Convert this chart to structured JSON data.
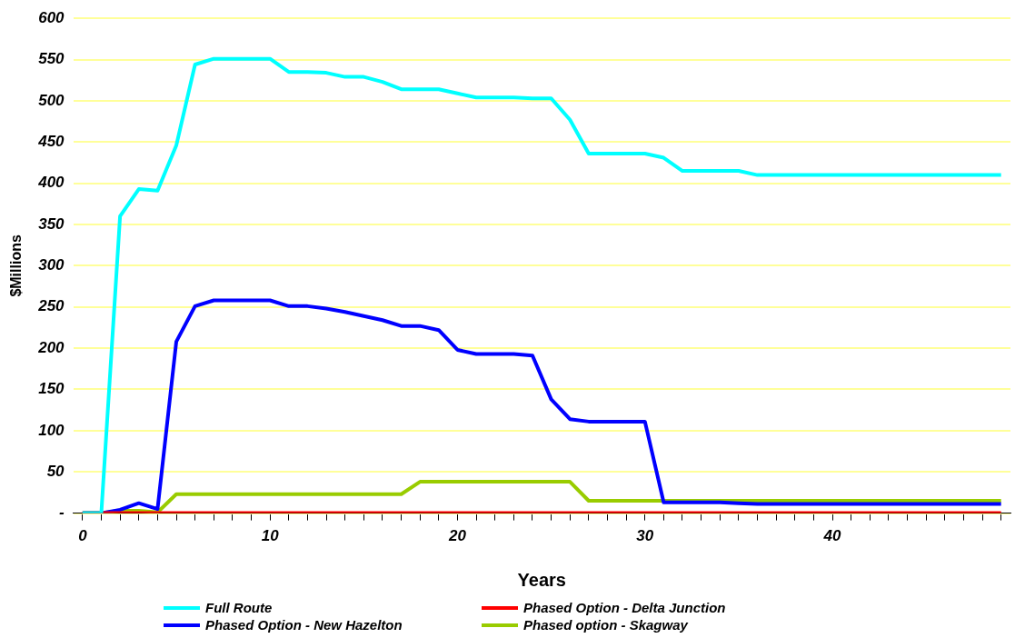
{
  "chart_data": {
    "type": "line",
    "xlabel": "Years",
    "ylabel": "$Millions",
    "x": [
      0,
      1,
      2,
      3,
      4,
      5,
      6,
      7,
      8,
      9,
      10,
      11,
      12,
      13,
      14,
      15,
      16,
      17,
      18,
      19,
      20,
      21,
      22,
      23,
      24,
      25,
      26,
      27,
      28,
      29,
      30,
      31,
      32,
      33,
      34,
      35,
      36,
      37,
      38,
      39,
      40,
      41,
      42,
      43,
      44,
      45,
      46,
      47,
      48,
      49
    ],
    "series": [
      {
        "name": "Full Route",
        "color": "#00ffff",
        "values": [
          0,
          0,
          360,
          393,
          391,
          446,
          544,
          551,
          551,
          551,
          551,
          535,
          535,
          534,
          529,
          529,
          523,
          514,
          514,
          514,
          509,
          504,
          504,
          504,
          503,
          503,
          477,
          436,
          436,
          436,
          436,
          431,
          415,
          415,
          415,
          415,
          410,
          410,
          410,
          410,
          410,
          410,
          410,
          410,
          410,
          410,
          410,
          410,
          410,
          410
        ]
      },
      {
        "name": "Phased Option - Delta Junction",
        "color": "#ff0000",
        "values": [
          0,
          0,
          0,
          0,
          0,
          0,
          0,
          0,
          0,
          0,
          0,
          0,
          0,
          0,
          0,
          0,
          0,
          0,
          0,
          0,
          0,
          0,
          0,
          0,
          0,
          0,
          0,
          0,
          0,
          0,
          0,
          0,
          0,
          0,
          0,
          0,
          0,
          0,
          0,
          0,
          0,
          0,
          0,
          0,
          0,
          0,
          0,
          0,
          0,
          0
        ]
      },
      {
        "name": "Phased Option - New Hazelton",
        "color": "#0000ff",
        "values": [
          0,
          0,
          4,
          12,
          5,
          208,
          251,
          258,
          258,
          258,
          258,
          251,
          251,
          248,
          244,
          239,
          234,
          227,
          227,
          222,
          198,
          193,
          193,
          193,
          191,
          138,
          114,
          111,
          111,
          111,
          111,
          13,
          13,
          13,
          13,
          12,
          11,
          11,
          11,
          11,
          11,
          11,
          11,
          11,
          11,
          11,
          11,
          11,
          11,
          11
        ]
      },
      {
        "name": "Phased option - Skagway",
        "color": "#99cc00",
        "values": [
          0,
          0,
          3,
          3,
          1,
          23,
          23,
          23,
          23,
          23,
          23,
          23,
          23,
          23,
          23,
          23,
          23,
          23,
          38,
          38,
          38,
          38,
          38,
          38,
          38,
          38,
          38,
          15,
          15,
          15,
          15,
          15,
          15,
          15,
          15,
          15,
          15,
          15,
          15,
          15,
          15,
          15,
          15,
          15,
          15,
          15,
          15,
          15,
          15,
          15
        ]
      }
    ],
    "xlim": [
      -0.5,
      49.5
    ],
    "xticks": [
      0,
      {
        "value": 1,
        "label": null
      },
      {
        "value": 2,
        "label": null
      },
      {
        "value": 3,
        "label": null
      },
      {
        "value": 4,
        "label": null
      },
      {
        "value": 5,
        "label": null
      },
      {
        "value": 6,
        "label": null
      },
      {
        "value": 7,
        "label": null
      },
      {
        "value": 8,
        "label": null
      },
      {
        "value": 9,
        "label": null
      },
      10,
      {
        "value": 11,
        "label": null
      },
      {
        "value": 12,
        "label": null
      },
      {
        "value": 13,
        "label": null
      },
      {
        "value": 14,
        "label": null
      },
      {
        "value": 15,
        "label": null
      },
      {
        "value": 16,
        "label": null
      },
      {
        "value": 17,
        "label": null
      },
      {
        "value": 18,
        "label": null
      },
      {
        "value": 19,
        "label": null
      },
      20,
      {
        "value": 21,
        "label": null
      },
      {
        "value": 22,
        "label": null
      },
      {
        "value": 23,
        "label": null
      },
      {
        "value": 24,
        "label": null
      },
      {
        "value": 25,
        "label": null
      },
      {
        "value": 26,
        "label": null
      },
      {
        "value": 27,
        "label": null
      },
      {
        "value": 28,
        "label": null
      },
      {
        "value": 29,
        "label": null
      },
      30,
      {
        "value": 31,
        "label": null
      },
      {
        "value": 32,
        "label": null
      },
      {
        "value": 33,
        "label": null
      },
      {
        "value": 34,
        "label": null
      },
      {
        "value": 35,
        "label": null
      },
      {
        "value": 36,
        "label": null
      },
      {
        "value": 37,
        "label": null
      },
      {
        "value": 38,
        "label": null
      },
      {
        "value": 39,
        "label": null
      },
      40,
      {
        "value": 41,
        "label": null
      },
      {
        "value": 42,
        "label": null
      },
      {
        "value": 43,
        "label": null
      },
      {
        "value": 44,
        "label": null
      },
      {
        "value": 45,
        "label": null
      },
      {
        "value": 46,
        "label": null
      },
      {
        "value": 47,
        "label": null
      },
      {
        "value": 48,
        "label": null
      },
      {
        "value": 49,
        "label": null
      }
    ],
    "ylim": [
      0,
      600
    ],
    "yticks": [
      {
        "value": 0,
        "label": "-"
      },
      50,
      100,
      150,
      200,
      250,
      300,
      350,
      400,
      450,
      500,
      550,
      600
    ],
    "grid": "y",
    "legend": "bottom",
    "marker": "none",
    "line_style": "solid"
  }
}
